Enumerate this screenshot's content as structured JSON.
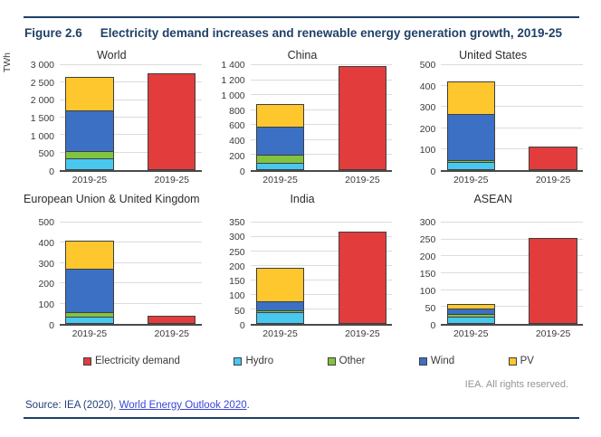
{
  "figure": {
    "label": "Figure 2.6",
    "title": "Electricity demand increases and renewable energy generation growth, 2019-25"
  },
  "unit_label": "TWh",
  "colors": {
    "electricity_demand": "#e23c3c",
    "hydro": "#48c7ef",
    "other": "#82c341",
    "wind": "#3b70c4",
    "pv": "#fdc72d",
    "accent_navy": "#1f4068",
    "link_blue": "#3847d6"
  },
  "legend": [
    {
      "key": "electricity_demand",
      "label": "Electricity demand"
    },
    {
      "key": "hydro",
      "label": "Hydro"
    },
    {
      "key": "other",
      "label": "Other"
    },
    {
      "key": "wind",
      "label": "Wind"
    },
    {
      "key": "pv",
      "label": "PV"
    }
  ],
  "chart_data": [
    {
      "type": "bar",
      "title": "World",
      "ylabel": "TWh",
      "categories": [
        "2019-25",
        "2019-25"
      ],
      "ylim": [
        0,
        3000
      ],
      "ytick_step": 500,
      "grid": true,
      "bars": [
        {
          "category": "2019-25",
          "stacked": true,
          "series": [
            {
              "name": "Hydro",
              "value": 340
            },
            {
              "name": "Other",
              "value": 230
            },
            {
              "name": "Wind",
              "value": 1150
            },
            {
              "name": "PV",
              "value": 970
            }
          ]
        },
        {
          "category": "2019-25",
          "series": [
            {
              "name": "Electricity demand",
              "value": 2720
            }
          ]
        }
      ]
    },
    {
      "type": "bar",
      "title": "China",
      "ylabel": "",
      "categories": [
        "2019-25",
        "2019-25"
      ],
      "ylim": [
        0,
        1400
      ],
      "ytick_step": 200,
      "grid": true,
      "bars": [
        {
          "category": "2019-25",
          "stacked": true,
          "series": [
            {
              "name": "Hydro",
              "value": 100
            },
            {
              "name": "Other",
              "value": 110
            },
            {
              "name": "Wind",
              "value": 385
            },
            {
              "name": "PV",
              "value": 305
            }
          ]
        },
        {
          "category": "2019-25",
          "series": [
            {
              "name": "Electricity demand",
              "value": 1370
            }
          ]
        }
      ]
    },
    {
      "type": "bar",
      "title": "United States",
      "ylabel": "",
      "categories": [
        "2019-25",
        "2019-25"
      ],
      "ylim": [
        0,
        500
      ],
      "ytick_step": 100,
      "grid": true,
      "bars": [
        {
          "category": "2019-25",
          "stacked": true,
          "series": [
            {
              "name": "Hydro",
              "value": 40
            },
            {
              "name": "Other",
              "value": 10
            },
            {
              "name": "Wind",
              "value": 220
            },
            {
              "name": "PV",
              "value": 155
            }
          ]
        },
        {
          "category": "2019-25",
          "series": [
            {
              "name": "Electricity demand",
              "value": 110
            }
          ]
        }
      ]
    },
    {
      "type": "bar",
      "title": "European Union & United Kingdom",
      "ylabel": "",
      "categories": [
        "2019-25",
        "2019-25"
      ],
      "ylim": [
        0,
        500
      ],
      "ytick_step": 100,
      "grid": true,
      "bars": [
        {
          "category": "2019-25",
          "stacked": true,
          "series": [
            {
              "name": "Hydro",
              "value": 33
            },
            {
              "name": "Other",
              "value": 30
            },
            {
              "name": "Wind",
              "value": 215
            },
            {
              "name": "PV",
              "value": 140
            }
          ]
        },
        {
          "category": "2019-25",
          "series": [
            {
              "name": "Electricity demand",
              "value": 40
            }
          ]
        }
      ]
    },
    {
      "type": "bar",
      "title": "India",
      "ylabel": "",
      "categories": [
        "2019-25",
        "2019-25"
      ],
      "ylim": [
        0,
        350
      ],
      "ytick_step": 50,
      "grid": true,
      "bars": [
        {
          "category": "2019-25",
          "stacked": true,
          "series": [
            {
              "name": "Hydro",
              "value": 40
            },
            {
              "name": "Other",
              "value": 8
            },
            {
              "name": "Wind",
              "value": 34
            },
            {
              "name": "PV",
              "value": 118
            }
          ]
        },
        {
          "category": "2019-25",
          "series": [
            {
              "name": "Electricity demand",
              "value": 313
            }
          ]
        }
      ]
    },
    {
      "type": "bar",
      "title": "ASEAN",
      "ylabel": "",
      "categories": [
        "2019-25",
        "2019-25"
      ],
      "ylim": [
        0,
        300
      ],
      "ytick_step": 50,
      "grid": true,
      "bars": [
        {
          "category": "2019-25",
          "stacked": true,
          "series": [
            {
              "name": "Hydro",
              "value": 21
            },
            {
              "name": "Other",
              "value": 11
            },
            {
              "name": "Wind",
              "value": 17
            },
            {
              "name": "PV",
              "value": 16
            }
          ]
        },
        {
          "category": "2019-25",
          "series": [
            {
              "name": "Electricity demand",
              "value": 249
            }
          ]
        }
      ]
    }
  ],
  "footer": {
    "rights": "IEA. All rights reserved.",
    "source_prefix": "Source: IEA (2020), ",
    "source_link": "World Energy Outlook 2020",
    "source_suffix": "."
  }
}
